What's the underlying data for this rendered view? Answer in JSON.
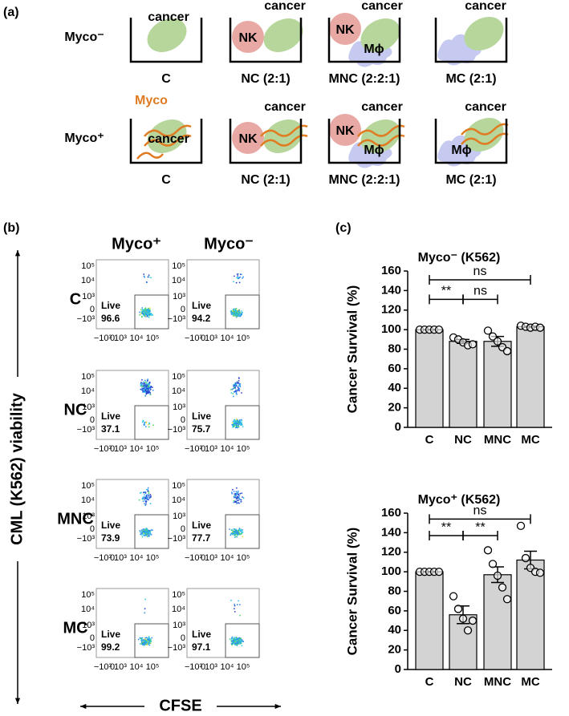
{
  "panel_a": {
    "label": "(a)",
    "rows": [
      {
        "label": "Myco⁻",
        "wells": [
          "C",
          "NC (2:1)",
          "MNC (2:2:1)",
          "MC (2:1)"
        ]
      },
      {
        "label": "Myco⁺",
        "wells": [
          "C",
          "NC (2:1)",
          "MNC (2:2:1)",
          "MC (2:1)"
        ]
      }
    ],
    "cells": {
      "cancer": "cancer",
      "nk": "NK",
      "macrophage": "Mϕ",
      "myco": "Myco"
    }
  },
  "panel_b": {
    "label": "(b)",
    "columns": [
      "Myco⁺",
      "Myco⁻"
    ],
    "rows": [
      "C",
      "NC",
      "MNC",
      "MC"
    ],
    "gate": "Live",
    "live": [
      [
        "96.6",
        "94.2"
      ],
      [
        "37.1",
        "75.7"
      ],
      [
        "73.9",
        "77.7"
      ],
      [
        "99.2",
        "97.1"
      ]
    ],
    "ticks": [
      "−10³",
      "0",
      "10³",
      "10⁴",
      "10⁵"
    ],
    "yaxis": "CML (K562) viability",
    "xaxis": "CFSE"
  },
  "panel_c": {
    "label": "(c)"
  },
  "chart_data": [
    {
      "type": "bar",
      "title": "Myco⁻ (K562)",
      "ylabel": "Cancer  Survival (%)",
      "categories": [
        "C",
        "NC",
        "MNC",
        "MC"
      ],
      "values": [
        100,
        88,
        88,
        103
      ],
      "errors": [
        0.3,
        2,
        5,
        0.6
      ],
      "points": [
        [
          100,
          100,
          100,
          100,
          100
        ],
        [
          92,
          90,
          87,
          84,
          85
        ],
        [
          99,
          93,
          88,
          82,
          78
        ],
        [
          104,
          103,
          102,
          103,
          102
        ]
      ],
      "color": "#d3d3d3",
      "ylim": [
        0,
        160
      ],
      "yticks": [
        0,
        20,
        40,
        60,
        80,
        100,
        120,
        140,
        160
      ],
      "annotations": [
        "ns",
        "**",
        "ns"
      ]
    },
    {
      "type": "bar",
      "title": "Myco⁺ (K562)",
      "ylabel": "Cancer  Survival (%)",
      "categories": [
        "C",
        "NC",
        "MNC",
        "MC"
      ],
      "values": [
        100,
        56,
        97,
        112
      ],
      "errors": [
        0.3,
        9,
        8,
        9
      ],
      "points": [
        [
          100,
          100,
          100,
          100,
          100
        ],
        [
          75,
          62,
          52,
          40,
          50
        ],
        [
          122,
          108,
          96,
          84,
          72
        ],
        [
          147,
          114,
          104,
          100,
          99
        ]
      ],
      "color": "#d3d3d3",
      "ylim": [
        0,
        160
      ],
      "yticks": [
        0,
        20,
        40,
        60,
        80,
        100,
        120,
        140,
        160
      ],
      "annotations": [
        "ns",
        "**",
        "**"
      ]
    }
  ]
}
